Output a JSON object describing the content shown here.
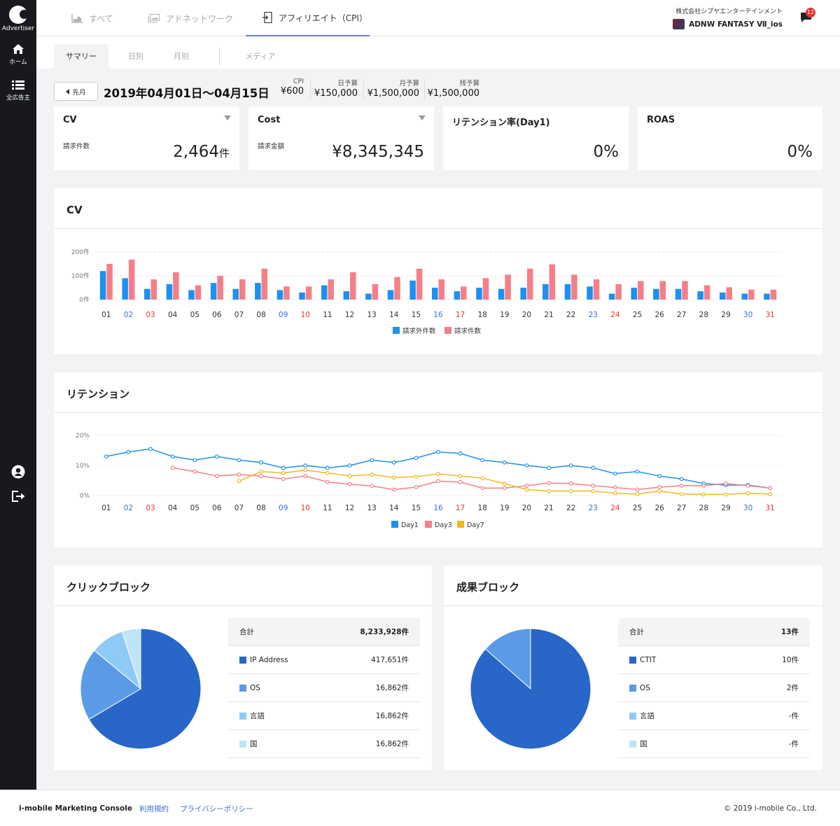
{
  "sidebar": {
    "logo_label": "Advertiser",
    "items": [
      {
        "icon": "home-icon",
        "label": "ホーム"
      },
      {
        "icon": "list-icon",
        "label": "全広告主"
      }
    ],
    "bottom_icons": [
      "user-icon",
      "logout-icon"
    ]
  },
  "header": {
    "tabs": [
      {
        "icon": "area-chart-icon",
        "label": "すべて",
        "active": false
      },
      {
        "icon": "image-icon",
        "label": "アドネットワーク",
        "active": false
      },
      {
        "icon": "login-icon",
        "label": "アフィリエイト（CPI）",
        "active": true
      }
    ],
    "company": "株式会社シプヤエンターテインメント",
    "app_name": "ADNW FANTASY Ⅶ_ios",
    "notification_count": "12"
  },
  "subtabs": [
    {
      "label": "サマリー",
      "active": true
    },
    {
      "label": "日別",
      "active": false
    },
    {
      "label": "月別",
      "active": false
    },
    {
      "label": "メディア",
      "active": false
    }
  ],
  "period": {
    "prev_button": "先月",
    "date_range": "2019年04月01日〜04月15日"
  },
  "budget": [
    {
      "label": "CPI",
      "value": "¥600"
    },
    {
      "label": "日予算",
      "value": "¥150,000"
    },
    {
      "label": "月予算",
      "value": "¥1,500,000"
    },
    {
      "label": "残予算",
      "value": "¥1,500,000"
    }
  ],
  "kpis": [
    {
      "title": "CV",
      "sub": "請求件数",
      "value": "2,464",
      "unit": "件",
      "caret": true
    },
    {
      "title": "Cost",
      "sub": "請求金額",
      "value": "¥8,345,345",
      "unit": "",
      "caret": true
    },
    {
      "title": "リテンション率(Day1)",
      "sub": "",
      "value": "0%",
      "unit": "",
      "caret": false
    },
    {
      "title": "ROAS",
      "sub": "",
      "value": "0%",
      "unit": "",
      "caret": false
    }
  ],
  "colors": {
    "blue": "#1e90f0",
    "pink": "#f47f88",
    "yellow": "#f2b81e",
    "saturday": "#3b6fd1",
    "sunday": "#e3342f",
    "pie1": "#2866c8",
    "pie2": "#5b9ae6",
    "pie3": "#8fcaf6",
    "pie4": "#bfe4f6"
  },
  "chart_data": [
    {
      "type": "bar",
      "title": "CV",
      "categories": [
        "01",
        "02",
        "03",
        "04",
        "05",
        "06",
        "07",
        "08",
        "09",
        "10",
        "11",
        "12",
        "13",
        "14",
        "15",
        "16",
        "17",
        "18",
        "19",
        "20",
        "21",
        "22",
        "23",
        "24",
        "25",
        "26",
        "27",
        "28",
        "29",
        "30",
        "31"
      ],
      "category_colors": {
        "saturday": [
          "02",
          "09",
          "16",
          "23",
          "30"
        ],
        "sunday": [
          "03",
          "10",
          "17",
          "24",
          "31"
        ]
      },
      "yticks": [
        "200件",
        "100件",
        "0件"
      ],
      "ylim": [
        0,
        200
      ],
      "series": [
        {
          "name": "請求外件数",
          "values": [
            120,
            90,
            45,
            65,
            40,
            70,
            45,
            70,
            40,
            30,
            60,
            35,
            25,
            40,
            80,
            50,
            35,
            50,
            45,
            50,
            65,
            65,
            55,
            25,
            50,
            45,
            45,
            35,
            30,
            25,
            25
          ]
        },
        {
          "name": "請求件数",
          "values": [
            150,
            168,
            85,
            115,
            60,
            100,
            85,
            130,
            55,
            55,
            85,
            115,
            65,
            95,
            130,
            85,
            55,
            90,
            105,
            130,
            148,
            105,
            85,
            65,
            78,
            78,
            78,
            60,
            52,
            42,
            42
          ]
        }
      ],
      "legend": "bottom-center"
    },
    {
      "type": "line",
      "title": "リテンション",
      "categories": [
        "01",
        "02",
        "03",
        "04",
        "05",
        "06",
        "07",
        "08",
        "09",
        "10",
        "11",
        "12",
        "13",
        "14",
        "15",
        "16",
        "17",
        "18",
        "19",
        "20",
        "21",
        "22",
        "23",
        "24",
        "25",
        "26",
        "27",
        "28",
        "29",
        "30",
        "31"
      ],
      "yticks": [
        "20%",
        "10%",
        "0%"
      ],
      "ylim": [
        0,
        20
      ],
      "series": [
        {
          "name": "Day1",
          "values": [
            13,
            14.5,
            15.5,
            13,
            11.8,
            13,
            11.8,
            11,
            9.2,
            10,
            9.2,
            10,
            11.8,
            11,
            12.5,
            14.5,
            14,
            11.8,
            11,
            10,
            9.2,
            10,
            9.2,
            7.3,
            8,
            6.5,
            5.5,
            4,
            3.5,
            3.5,
            2.5
          ]
        },
        {
          "name": "Day3",
          "values": [
            null,
            null,
            null,
            9.2,
            8,
            6.5,
            7,
            6.5,
            5.5,
            6.5,
            4.5,
            3.8,
            3.2,
            2,
            2.8,
            4.8,
            4.5,
            2.5,
            2.5,
            3.3,
            4.2,
            4,
            3.3,
            2.7,
            2,
            2.8,
            3.3,
            3.3,
            4,
            3.3,
            2.5
          ]
        },
        {
          "name": "Day7",
          "values": [
            null,
            null,
            null,
            null,
            null,
            null,
            4.8,
            8,
            7.5,
            8.5,
            7.5,
            6.5,
            7,
            6,
            6.3,
            7.2,
            6.5,
            5.8,
            4,
            2,
            1.5,
            1.5,
            1.5,
            0.8,
            0.5,
            1.5,
            0.5,
            0.4,
            0.4,
            0.8,
            0.5
          ]
        }
      ],
      "legend": "bottom-center"
    },
    {
      "type": "pie",
      "title": "クリックブロック",
      "total_label": "合計",
      "total_value": "8,233,928件",
      "rows": [
        {
          "label": "IP Address",
          "value": "417,651件",
          "share": 0.665
        },
        {
          "label": "OS",
          "value": "16,862件",
          "share": 0.195
        },
        {
          "label": "言語",
          "value": "16,862件",
          "share": 0.09
        },
        {
          "label": "国",
          "value": "16,862件",
          "share": 0.05
        }
      ]
    },
    {
      "type": "pie",
      "title": "成果ブロック",
      "total_label": "合計",
      "total_value": "13件",
      "rows": [
        {
          "label": "CTIT",
          "value": "10件",
          "share": 0.865
        },
        {
          "label": "OS",
          "value": "2件",
          "share": 0.135
        },
        {
          "label": "言語",
          "value": "-件",
          "share": 0
        },
        {
          "label": "国",
          "value": "-件",
          "share": 0
        }
      ]
    }
  ],
  "footer": {
    "brand": "i-mobile Marketing Console",
    "links": [
      "利用規約",
      "プライバシーポリシー"
    ],
    "copyright": "© 2019 i-mobile Co., Ltd."
  }
}
